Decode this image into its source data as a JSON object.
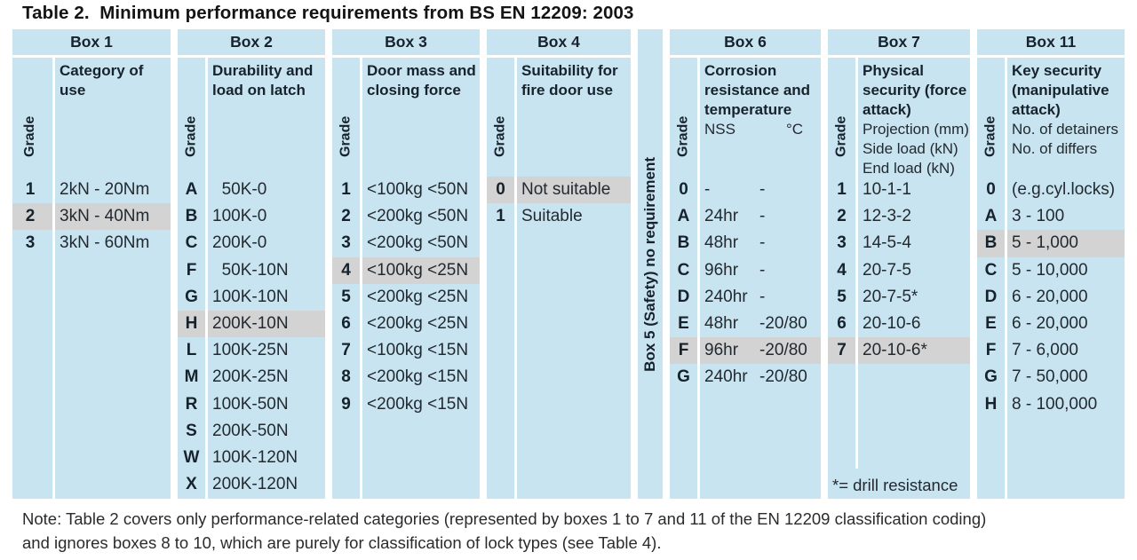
{
  "title": "Table 2.  Minimum performance requirements from BS EN 12209: 2003",
  "colors": {
    "column_bg": "#c9e4f1",
    "highlight_bg": "#d3d3d3",
    "text": "#222a30"
  },
  "note": [
    "Note: Table 2 covers only performance-related categories (represented by boxes 1 to 7 and 11 of the EN 12209 classification coding)",
    "and ignores boxes 8 to 10, which are purely for classification of lock types (see Table 4)."
  ],
  "grade_axis_label": "Grade",
  "boxes": [
    {
      "id": "box1",
      "header": "Box 1",
      "subtitle": "Category of use",
      "rows": [
        {
          "grade": "1",
          "value": "2kN - 20Nm"
        },
        {
          "grade": "2",
          "value": "3kN - 40Nm",
          "highlight": true
        },
        {
          "grade": "3",
          "value": "3kN - 60Nm"
        }
      ]
    },
    {
      "id": "box2",
      "header": "Box 2",
      "subtitle": "Durability and load on latch",
      "rows": [
        {
          "grade": "A",
          "value": " 50K-0"
        },
        {
          "grade": "B",
          "value": "100K-0"
        },
        {
          "grade": "C",
          "value": "200K-0"
        },
        {
          "grade": "F",
          "value": " 50K-10N"
        },
        {
          "grade": "G",
          "value": "100K-10N"
        },
        {
          "grade": "H",
          "value": "200K-10N",
          "highlight": true
        },
        {
          "grade": "L",
          "value": "100K-25N"
        },
        {
          "grade": "M",
          "value": "200K-25N"
        },
        {
          "grade": "R",
          "value": "100K-50N"
        },
        {
          "grade": "S",
          "value": "200K-50N"
        },
        {
          "grade": "W",
          "value": "100K-120N"
        },
        {
          "grade": "X",
          "value": "200K-120N"
        }
      ]
    },
    {
      "id": "box3",
      "header": "Box 3",
      "subtitle": "Door mass and closing force",
      "rows": [
        {
          "grade": "1",
          "value": "<100kg <50N"
        },
        {
          "grade": "2",
          "value": "<200kg <50N"
        },
        {
          "grade": "3",
          "value": "<200kg <50N"
        },
        {
          "grade": "4",
          "value": "<100kg <25N",
          "highlight": true
        },
        {
          "grade": "5",
          "value": "<200kg <25N"
        },
        {
          "grade": "6",
          "value": "<200kg <25N"
        },
        {
          "grade": "7",
          "value": "<100kg <15N"
        },
        {
          "grade": "8",
          "value": "<200kg <15N"
        },
        {
          "grade": "9",
          "value": "<200kg <15N"
        }
      ]
    },
    {
      "id": "box4",
      "header": "Box 4",
      "subtitle": "Suitability for fire door use",
      "rows": [
        {
          "grade": "0",
          "value": "Not suitable",
          "highlight": true
        },
        {
          "grade": "1",
          "value": "Suitable"
        }
      ]
    },
    {
      "id": "box5",
      "vertical_text": "Box 5 (Safety) no requirement"
    },
    {
      "id": "box6",
      "header": "Box 6",
      "subtitle": "Corrosion resistance and temperature",
      "columns": {
        "nss": "NSS",
        "temp": "°C"
      },
      "rows": [
        {
          "grade": "0",
          "nss": "-",
          "temp": "-"
        },
        {
          "grade": "A",
          "nss": "24hr",
          "temp": "-"
        },
        {
          "grade": "B",
          "nss": "48hr",
          "temp": "-"
        },
        {
          "grade": "C",
          "nss": "96hr",
          "temp": "-"
        },
        {
          "grade": "D",
          "nss": "240hr",
          "temp": "-"
        },
        {
          "grade": "E",
          "nss": "48hr",
          "temp": "-20/80"
        },
        {
          "grade": "F",
          "nss": "96hr",
          "temp": "-20/80",
          "highlight": true
        },
        {
          "grade": "G",
          "nss": "240hr",
          "temp": "-20/80"
        }
      ]
    },
    {
      "id": "box7",
      "header": "Box 7",
      "subtitle": "Physical security (force attack)",
      "sub_lines": [
        "Projection (mm)",
        "Side load (kN)",
        "End load (kN)"
      ],
      "footnote": "*= drill resistance",
      "rows": [
        {
          "grade": "1",
          "value": "10-1-1"
        },
        {
          "grade": "2",
          "value": "12-3-2"
        },
        {
          "grade": "3",
          "value": "14-5-4"
        },
        {
          "grade": "4",
          "value": "20-7-5"
        },
        {
          "grade": "5",
          "value": "20-7-5*"
        },
        {
          "grade": "6",
          "value": "20-10-6"
        },
        {
          "grade": "7",
          "value": "20-10-6*",
          "highlight": true
        }
      ]
    },
    {
      "id": "box11",
      "header": "Box 11",
      "subtitle": "Key security (manipulative attack)",
      "sub_lines": [
        "No. of detainers",
        "No. of differs"
      ],
      "rows": [
        {
          "grade": "0",
          "value": "(e.g.cyl.locks)"
        },
        {
          "grade": "A",
          "value": "3 - 100"
        },
        {
          "grade": "B",
          "value": "5 - 1,000",
          "highlight": true
        },
        {
          "grade": "C",
          "value": "5 - 10,000"
        },
        {
          "grade": "D",
          "value": "6 - 20,000"
        },
        {
          "grade": "E",
          "value": "6 - 20,000"
        },
        {
          "grade": "F",
          "value": "7 - 6,000"
        },
        {
          "grade": "G",
          "value": "7 - 50,000"
        },
        {
          "grade": "H",
          "value": "8 - 100,000"
        }
      ]
    }
  ]
}
